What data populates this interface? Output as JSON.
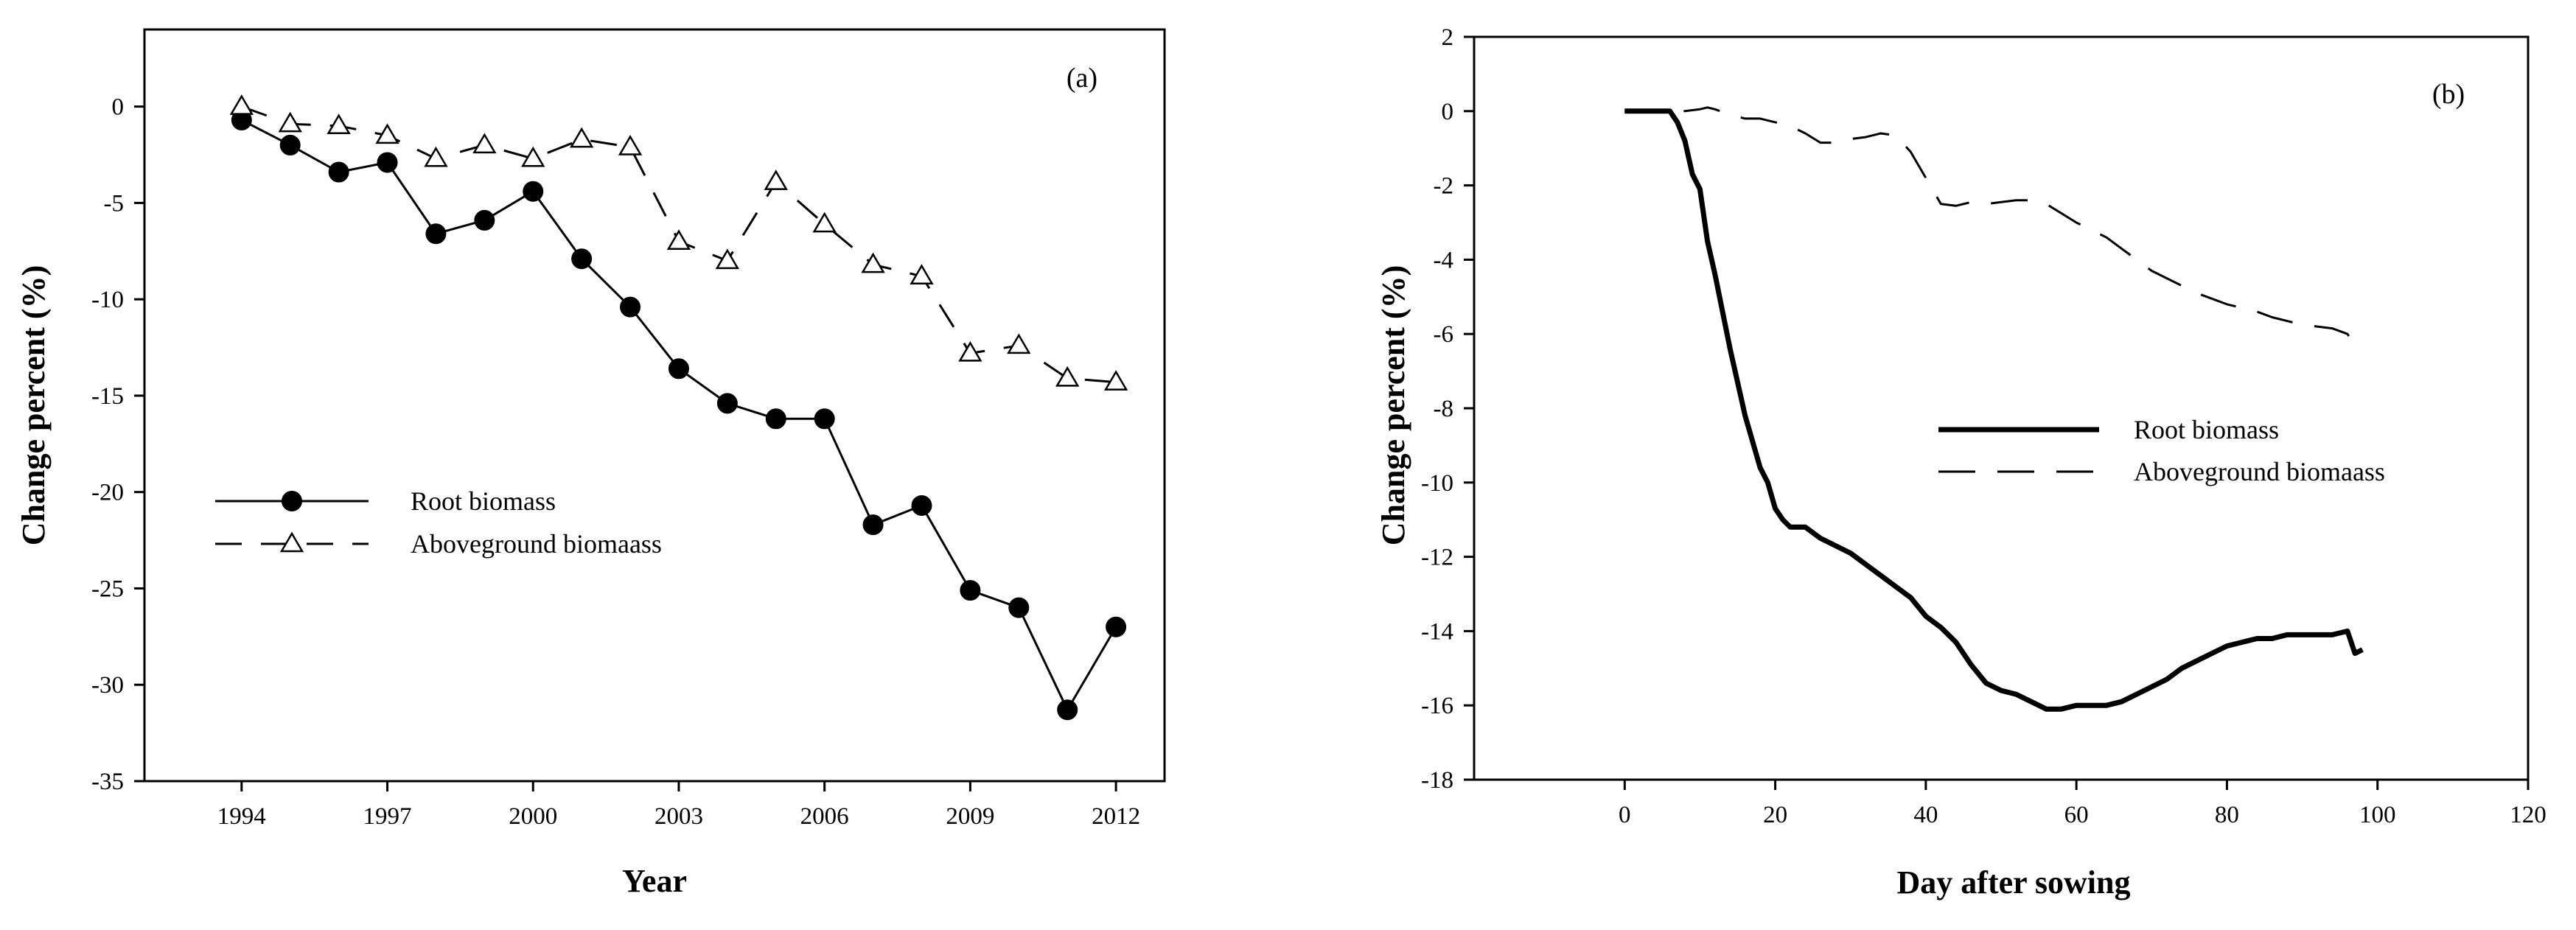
{
  "chart_data": [
    {
      "type": "line",
      "panel_label": "(a)",
      "xlabel": "Year",
      "ylabel": "Change percent (%)",
      "xlim": [
        1992,
        2013
      ],
      "ylim": [
        -35,
        4
      ],
      "xticks": [
        1994,
        1997,
        2000,
        2003,
        2006,
        2009,
        2012
      ],
      "yticks": [
        0,
        -5,
        -10,
        -15,
        -20,
        -25,
        -30,
        -35
      ],
      "legend_position": "center-left",
      "series": [
        {
          "name": "Root biomass",
          "style": "solid",
          "marker": "filled-circle",
          "x": [
            1994,
            1995,
            1996,
            1997,
            1998,
            1999,
            2000,
            2001,
            2002,
            2003,
            2004,
            2005,
            2006,
            2007,
            2008,
            2009,
            2010,
            2011,
            2012
          ],
          "y": [
            -0.7,
            -2.0,
            -3.4,
            -2.9,
            -6.6,
            -5.9,
            -4.4,
            -7.9,
            -10.4,
            -13.6,
            -15.4,
            -16.2,
            -16.2,
            -21.7,
            -20.7,
            -25.1,
            -26.0,
            -31.3,
            -27.0
          ]
        },
        {
          "name": "Aboveground biomaass",
          "style": "dashed",
          "marker": "open-triangle",
          "x": [
            1994,
            1995,
            1996,
            1997,
            1998,
            1999,
            2000,
            2001,
            2002,
            2003,
            2004,
            2005,
            2006,
            2007,
            2008,
            2009,
            2010,
            2011,
            2012
          ],
          "y": [
            0.0,
            -0.9,
            -1.0,
            -1.5,
            -2.7,
            -2.0,
            -2.7,
            -1.7,
            -2.1,
            -7.0,
            -8.0,
            -3.9,
            -6.1,
            -8.2,
            -8.8,
            -12.8,
            -12.4,
            -14.1,
            -14.3
          ]
        }
      ]
    },
    {
      "type": "line",
      "panel_label": "(b)",
      "xlabel": "Day after sowing",
      "ylabel": "Change percent (%)",
      "xlim": [
        -20,
        120
      ],
      "ylim": [
        -18,
        2
      ],
      "xticks": [
        0,
        20,
        40,
        60,
        80,
        100,
        120
      ],
      "yticks": [
        2,
        0,
        -2,
        -4,
        -6,
        -8,
        -10,
        -12,
        -14,
        -16,
        -18
      ],
      "legend_position": "center-right",
      "series": [
        {
          "name": "Root biomass",
          "style": "thick-solid",
          "x": [
            0,
            2,
            4,
            6,
            7,
            8,
            9,
            10,
            11,
            12,
            14,
            16,
            18,
            19,
            20,
            21,
            22,
            24,
            26,
            28,
            30,
            32,
            34,
            36,
            38,
            40,
            42,
            44,
            46,
            48,
            50,
            52,
            54,
            56,
            58,
            60,
            62,
            64,
            66,
            68,
            70,
            72,
            74,
            76,
            78,
            80,
            82,
            84,
            86,
            88,
            90,
            92,
            94,
            96,
            97,
            98
          ],
          "y": [
            0,
            0,
            0,
            0,
            -0.3,
            -0.8,
            -1.7,
            -2.1,
            -3.5,
            -4.4,
            -6.4,
            -8.2,
            -9.6,
            -10.0,
            -10.7,
            -11.0,
            -11.2,
            -11.2,
            -11.5,
            -11.7,
            -11.9,
            -12.2,
            -12.5,
            -12.8,
            -13.1,
            -13.6,
            -13.9,
            -14.3,
            -14.9,
            -15.4,
            -15.6,
            -15.7,
            -15.9,
            -16.1,
            -16.1,
            -16.0,
            -16.0,
            -16.0,
            -15.9,
            -15.7,
            -15.5,
            -15.3,
            -15.0,
            -14.8,
            -14.6,
            -14.4,
            -14.3,
            -14.2,
            -14.2,
            -14.1,
            -14.1,
            -14.1,
            -14.1,
            -14.0,
            -14.6,
            -14.5
          ]
        },
        {
          "name": "Aboveground biomaass",
          "style": "dashed",
          "x": [
            0,
            4,
            8,
            10,
            11,
            12,
            14,
            16,
            18,
            20,
            22,
            24,
            26,
            28,
            30,
            32,
            34,
            36,
            38,
            40,
            42,
            44,
            46,
            48,
            50,
            52,
            54,
            56,
            58,
            60,
            62,
            64,
            66,
            68,
            70,
            72,
            74,
            76,
            78,
            80,
            82,
            84,
            86,
            88,
            90,
            92,
            94,
            96,
            97,
            98
          ],
          "y": [
            0,
            0,
            0,
            0.05,
            0.1,
            0.05,
            -0.1,
            -0.2,
            -0.2,
            -0.3,
            -0.4,
            -0.6,
            -0.85,
            -0.85,
            -0.75,
            -0.7,
            -0.6,
            -0.65,
            -1.1,
            -1.8,
            -2.5,
            -2.55,
            -2.45,
            -2.5,
            -2.45,
            -2.4,
            -2.4,
            -2.5,
            -2.75,
            -3.0,
            -3.2,
            -3.4,
            -3.7,
            -4.0,
            -4.3,
            -4.5,
            -4.7,
            -4.9,
            -5.05,
            -5.2,
            -5.3,
            -5.4,
            -5.55,
            -5.65,
            -5.75,
            -5.8,
            -5.85,
            -6.0,
            -6.3,
            -6.2
          ]
        }
      ]
    }
  ]
}
